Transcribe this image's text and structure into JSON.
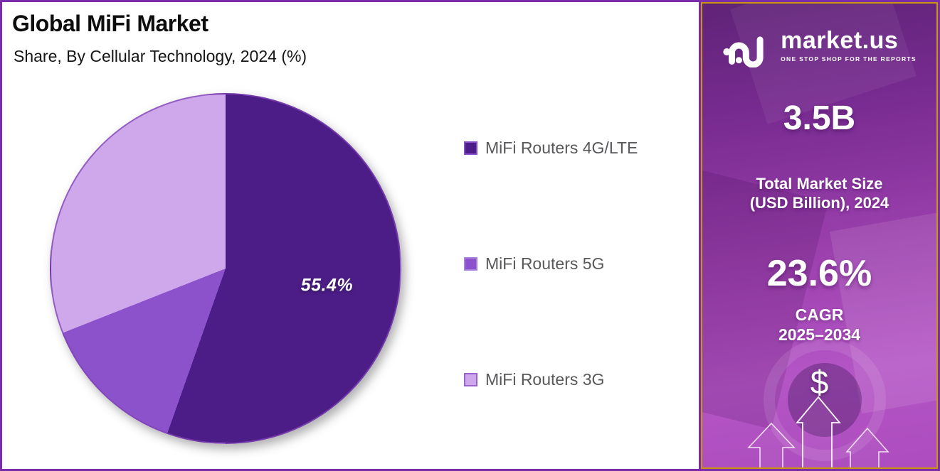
{
  "frame": {
    "border_color": "#7B2CA8"
  },
  "chart": {
    "title": "Global MiFi Market",
    "subtitle": "Share, By Cellular Technology, 2024 (%)",
    "slice_label": "55.4%"
  },
  "chart_data": {
    "type": "pie",
    "title": "Global MiFi Market",
    "subtitle": "Share, By Cellular Technology, 2024 (%)",
    "categories": [
      "MiFi Routers 4G/LTE",
      "MiFi Routers 5G",
      "MiFi Routers 3G"
    ],
    "values": [
      55.4,
      13.6,
      31.0
    ],
    "colors": [
      "#4C1D87",
      "#8B52CC",
      "#CFA8EC"
    ],
    "data_labels": [
      {
        "category": "MiFi Routers 4G/LTE",
        "text": "55.4%"
      }
    ],
    "start_angle_deg": 0,
    "direction": "clockwise",
    "legend_position": "right"
  },
  "legend": {
    "items": [
      {
        "label": "MiFi Routers 4G/LTE",
        "marker_color": "#4C1D87",
        "marker_border": "#8A4FC7"
      },
      {
        "label": "MiFi Routers 5G",
        "marker_color": "#8B52CC",
        "marker_border": "#A983D9"
      },
      {
        "label": "MiFi Routers 3G",
        "marker_color": "#CFA8EC",
        "marker_border": "#9A63CF"
      }
    ]
  },
  "sidebar": {
    "logo": {
      "brand": "market.us",
      "tagline": "ONE STOP SHOP FOR THE REPORTS"
    },
    "market_size": {
      "value": "3.5B",
      "label_line1": "Total Market Size",
      "label_line2": "(USD Billion), 2024"
    },
    "cagr": {
      "value": "23.6%",
      "label_line1": "CAGR",
      "label_line2": "2025–2034"
    },
    "dollar_symbol": "$",
    "colors": {
      "border_gold": "#C9940E",
      "bg_top": "#5F2377",
      "bg_mid": "#9A3FAC",
      "bg_bottom": "#B455C5"
    }
  }
}
